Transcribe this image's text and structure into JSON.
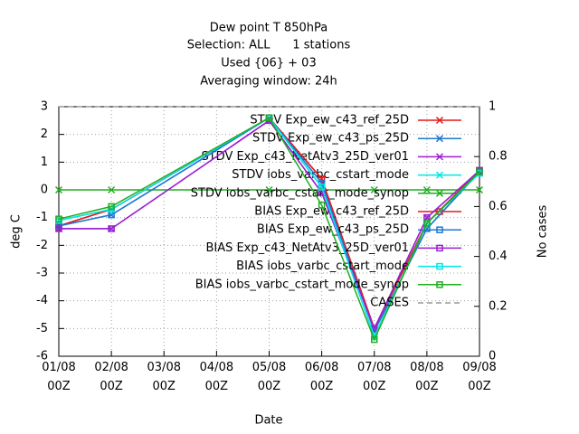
{
  "chart_data": {
    "type": "line",
    "title": [
      "Dew point T 850hPa",
      "Selection: ALL      1 stations",
      "Used {06} + 03",
      "Averaging window: 24h"
    ],
    "xlabel": "Date",
    "ylabel": "deg C",
    "y2label": "No cases",
    "categories": [
      "01/08\n00Z",
      "02/08\n00Z",
      "03/08\n00Z",
      "04/08\n00Z",
      "05/08\n00Z",
      "06/08\n00Z",
      "07/08\n00Z",
      "08/08\n00Z",
      "09/08\n00Z"
    ],
    "x": [
      "01/08\n00Z",
      "02/08\n00Z",
      "05/08\n00Z",
      "06/08\n00Z",
      "07/08\n00Z",
      "08/08\n00Z",
      "09/08\n00Z"
    ],
    "ylim": [
      -6,
      3
    ],
    "yticks": [
      -6,
      -5,
      -4,
      -3,
      -2,
      -1,
      0,
      1,
      2,
      3
    ],
    "y2lim": [
      0,
      1
    ],
    "y2ticks": [
      0,
      0.2,
      0.4,
      0.6,
      0.8,
      1
    ],
    "grid": true,
    "legend": "upper right",
    "series": [
      {
        "name": "STDV Exp_ew_c43_ref_25D",
        "color": "#e41a1c",
        "marker": "x",
        "values": [
          -1.3,
          -0.7,
          2.6,
          0.4,
          -5.0,
          -1.2,
          0.7
        ]
      },
      {
        "name": "STDV Exp_ew_c43_ps_25D",
        "color": "#1f78d4",
        "marker": "x",
        "values": [
          -1.3,
          -0.9,
          2.6,
          0.25,
          -5.1,
          -1.4,
          0.65
        ]
      },
      {
        "name": "STDV Exp_c43_NetAtv3_25D_ver01",
        "color": "#9b1fd4",
        "marker": "x",
        "values": [
          -1.4,
          -1.4,
          2.5,
          -0.1,
          -5.0,
          -1.0,
          0.7
        ]
      },
      {
        "name": "STDV iobs_varbc_cstart_mode",
        "color": "#00e5e5",
        "marker": "x",
        "values": [
          -1.1,
          -0.7,
          2.6,
          0.1,
          -5.3,
          -1.2,
          0.6
        ]
      },
      {
        "name": "STDV iobs_varbc_cstart_mode_synop",
        "color": "#1fae1f",
        "marker": "x",
        "values": [
          0,
          0,
          0,
          0,
          0,
          0,
          0
        ]
      },
      {
        "name": "BIAS Exp_ew_c43_ref_25D",
        "color": "#e41a1c",
        "marker": "square",
        "values": [
          -1.3,
          -0.7,
          2.6,
          0.4,
          -5.0,
          -1.2,
          0.7
        ]
      },
      {
        "name": "BIAS Exp_ew_c43_ps_25D",
        "color": "#1f78d4",
        "marker": "square",
        "values": [
          -1.3,
          -0.9,
          2.6,
          0.25,
          -5.1,
          -1.4,
          0.65
        ]
      },
      {
        "name": "BIAS Exp_c43_NetAtv3_25D_ver01",
        "color": "#9b1fd4",
        "marker": "square",
        "values": [
          -1.4,
          -1.4,
          2.5,
          -0.1,
          -5.0,
          -1.0,
          0.7
        ]
      },
      {
        "name": "BIAS iobs_varbc_cstart_mode",
        "color": "#00e5e5",
        "marker": "square",
        "values": [
          -1.1,
          -0.7,
          2.6,
          0.1,
          -5.3,
          -1.2,
          0.6
        ]
      },
      {
        "name": "BIAS iobs_varbc_cstart_mode_synop",
        "color": "#1fae1f",
        "marker": "square",
        "values": [
          -1.05,
          -0.6,
          2.6,
          -0.55,
          -5.4,
          -1.2,
          0.65
        ]
      },
      {
        "name": "CASES",
        "color": "#999999",
        "marker": "none",
        "dashed": true,
        "axis": "y2",
        "values": [
          1,
          1,
          1,
          1,
          1,
          1,
          1
        ]
      }
    ]
  }
}
